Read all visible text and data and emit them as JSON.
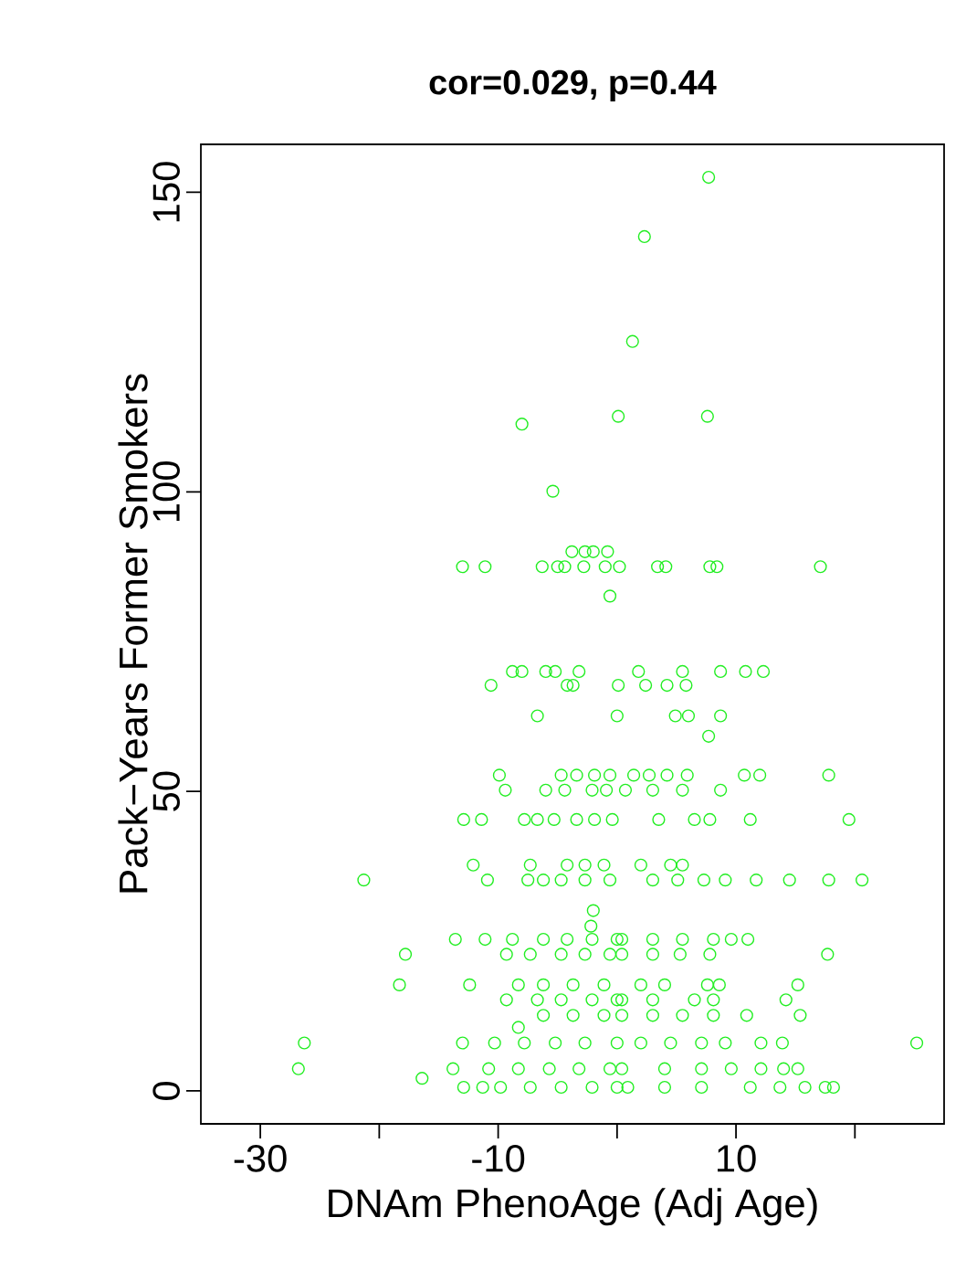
{
  "chart_data": {
    "type": "scatter",
    "title": "cor=0.029, p=0.44",
    "xlabel": "DNAm PhenoAge (Adj Age)",
    "ylabel": "Pack−Years Former Smokers",
    "color": "#22ee22",
    "marker": "circle",
    "xlim": [
      -35,
      27.5
    ],
    "ylim": [
      -5.5,
      158
    ],
    "xticks": [
      -30,
      {
        "value": -20,
        "label": null
      },
      -10,
      {
        "value": 0,
        "label": null
      },
      10,
      {
        "value": 20,
        "label": null
      }
    ],
    "yticks": [
      0,
      50,
      100,
      150
    ],
    "x": [
      7.7,
      2.3,
      1.3,
      -8.0,
      0.1,
      7.6,
      -5.4,
      -13.0,
      -11.1,
      -6.3,
      -5.0,
      -4.4,
      -2.8,
      -1.0,
      0.2,
      3.4,
      4.1,
      7.8,
      8.4,
      17.1,
      -3.8,
      -2.7,
      -2.0,
      -0.8,
      -0.6,
      -8.8,
      -8.0,
      -6.0,
      -5.2,
      -3.2,
      1.8,
      5.5,
      8.7,
      10.8,
      12.3,
      -10.6,
      -4.2,
      -3.7,
      0.1,
      2.4,
      4.2,
      5.8,
      -6.7,
      0.0,
      4.9,
      6.0,
      8.7,
      7.7,
      -9.9,
      -4.7,
      -3.4,
      -1.9,
      -0.6,
      1.4,
      2.7,
      4.2,
      5.9,
      10.7,
      12.0,
      17.8,
      -9.4,
      -6.0,
      -4.4,
      -2.1,
      -0.9,
      0.7,
      3.0,
      5.5,
      8.7,
      -12.9,
      -11.4,
      -7.8,
      -6.7,
      -5.3,
      -3.4,
      -1.9,
      -0.4,
      3.5,
      6.5,
      7.8,
      11.2,
      19.5,
      -12.1,
      -7.3,
      -4.2,
      -2.7,
      -1.1,
      2.0,
      4.5,
      5.5,
      -21.3,
      -10.9,
      -7.5,
      -6.2,
      -4.7,
      -2.7,
      -0.6,
      3.0,
      5.1,
      7.3,
      9.1,
      11.7,
      14.5,
      17.8,
      20.6,
      -2.0,
      -2.2,
      -13.6,
      -11.1,
      -8.8,
      -6.2,
      -4.2,
      -2.1,
      0.0,
      0.4,
      3.0,
      5.5,
      8.1,
      9.6,
      11.0,
      -17.8,
      -9.3,
      -7.3,
      -4.7,
      -2.7,
      -0.6,
      0.4,
      3.0,
      5.3,
      7.8,
      17.7,
      -18.3,
      -12.4,
      -8.3,
      -6.2,
      -3.7,
      -1.1,
      2.0,
      4.0,
      7.6,
      8.6,
      15.2,
      -9.3,
      -6.7,
      -4.7,
      -2.1,
      0.0,
      0.4,
      3.0,
      6.5,
      8.1,
      14.2,
      -6.2,
      -3.7,
      -1.1,
      0.4,
      3.0,
      5.5,
      8.1,
      10.9,
      15.4,
      -8.3,
      -26.3,
      -13.0,
      -10.3,
      -7.8,
      -5.2,
      -2.7,
      0.0,
      2.0,
      4.5,
      7.1,
      9.1,
      12.1,
      13.9,
      25.2,
      -26.8,
      -13.8,
      -10.8,
      -8.3,
      -5.7,
      -3.2,
      -0.6,
      0.4,
      4.0,
      7.1,
      9.6,
      12.1,
      14.0,
      15.2,
      -16.4,
      -12.9,
      -11.3,
      -9.8,
      -7.3,
      -4.7,
      -2.1,
      0.0,
      0.9,
      4.0,
      7.1,
      11.2,
      13.7,
      15.8,
      17.5,
      18.2
    ],
    "values": [
      152.5,
      142.6,
      125.1,
      111.3,
      112.6,
      112.6,
      100.1,
      87.5,
      87.5,
      87.5,
      87.5,
      87.5,
      87.5,
      87.5,
      87.5,
      87.5,
      87.5,
      87.5,
      87.5,
      87.5,
      90,
      90,
      90,
      90,
      82.6,
      70,
      70,
      70,
      70,
      70,
      70,
      70,
      70,
      70,
      70,
      67.7,
      67.7,
      67.7,
      67.7,
      67.7,
      67.7,
      67.7,
      62.6,
      62.6,
      62.6,
      62.6,
      62.6,
      59.2,
      52.7,
      52.7,
      52.7,
      52.7,
      52.7,
      52.7,
      52.7,
      52.7,
      52.7,
      52.7,
      52.7,
      52.7,
      50.2,
      50.2,
      50.2,
      50.2,
      50.2,
      50.2,
      50.2,
      50.2,
      50.2,
      45.3,
      45.3,
      45.3,
      45.3,
      45.3,
      45.3,
      45.3,
      45.3,
      45.3,
      45.3,
      45.3,
      45.3,
      45.3,
      37.7,
      37.7,
      37.7,
      37.7,
      37.7,
      37.7,
      37.7,
      37.7,
      35.2,
      35.2,
      35.2,
      35.2,
      35.2,
      35.2,
      35.2,
      35.2,
      35.2,
      35.2,
      35.2,
      35.2,
      35.2,
      35.2,
      35.2,
      30.1,
      27.5,
      25.3,
      25.3,
      25.3,
      25.3,
      25.3,
      25.3,
      25.3,
      25.3,
      25.3,
      25.3,
      25.3,
      25.3,
      25.3,
      22.8,
      22.8,
      22.8,
      22.8,
      22.8,
      22.8,
      22.8,
      22.8,
      22.8,
      22.8,
      22.8,
      17.7,
      17.7,
      17.7,
      17.7,
      17.7,
      17.7,
      17.7,
      17.7,
      17.7,
      17.7,
      17.7,
      15.2,
      15.2,
      15.2,
      15.2,
      15.2,
      15.2,
      15.2,
      15.2,
      15.2,
      15.2,
      12.6,
      12.6,
      12.6,
      12.6,
      12.6,
      12.6,
      12.6,
      12.6,
      12.6,
      10.6,
      8.0,
      8.0,
      8.0,
      8.0,
      8.0,
      8.0,
      8.0,
      8.0,
      8.0,
      8.0,
      8.0,
      8.0,
      8.0,
      8.0,
      3.7,
      3.7,
      3.7,
      3.7,
      3.7,
      3.7,
      3.7,
      3.7,
      3.7,
      3.7,
      3.7,
      3.7,
      3.7,
      3.7,
      2.1,
      0.6,
      0.6,
      0.6,
      0.6,
      0.6,
      0.6,
      0.6,
      0.6,
      0.6,
      0.6,
      0.6,
      0.6,
      0.6,
      0.6,
      0.6
    ]
  }
}
